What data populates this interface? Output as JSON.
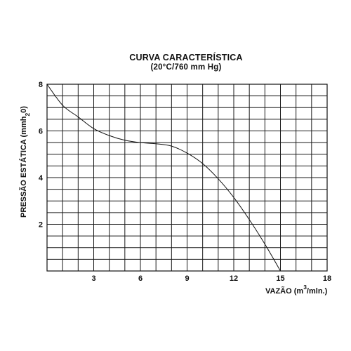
{
  "chart_data": {
    "type": "line",
    "title": "CURVA CARACTERÍSTICA",
    "subtitle": "(20°C/760 mm Hg)",
    "xlabel": {
      "prefix": "VAZÃO (m",
      "superscript": "3",
      "suffix": "/mln.)"
    },
    "ylabel": {
      "prefix": "PRESSÃO ESTÁTICA (mmh",
      "subscript": "2",
      "suffix": "0)"
    },
    "xlim": [
      0,
      18
    ],
    "ylim": [
      0,
      8
    ],
    "x_ticks": [
      3,
      6,
      9,
      12,
      15,
      18
    ],
    "y_ticks": [
      2,
      4,
      6,
      8
    ],
    "grid": true,
    "grid_x_step": 1,
    "grid_y_step": 0.5,
    "series": [
      {
        "x": [
          0,
          1,
          2,
          3,
          4,
          5,
          6,
          7,
          8,
          9,
          10,
          11,
          12,
          13,
          14,
          15
        ],
        "y": [
          8.0,
          7.1,
          6.6,
          6.1,
          5.8,
          5.6,
          5.5,
          5.45,
          5.35,
          5.05,
          4.6,
          3.95,
          3.15,
          2.2,
          1.15,
          0
        ]
      }
    ]
  }
}
